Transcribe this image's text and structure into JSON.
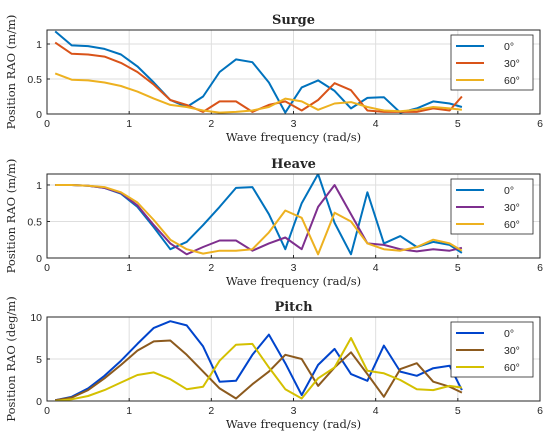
{
  "chart_data": [
    {
      "type": "line",
      "title": "Surge",
      "xlabel": "Wave frequency (rad/s)",
      "ylabel": "Position RAO (m/m)",
      "xlim": [
        0,
        6
      ],
      "ylim": [
        0,
        1.2
      ],
      "xticks": [
        "0",
        "1",
        "2",
        "3",
        "4",
        "5",
        "6"
      ],
      "yticks": [
        "0",
        "0.5",
        "1"
      ],
      "grid": true,
      "legend_position": "top-right",
      "series": [
        {
          "name": "0°",
          "color": "#0072BD",
          "x": [
            0.1,
            0.3,
            0.5,
            0.7,
            0.9,
            1.1,
            1.3,
            1.5,
            1.7,
            1.9,
            2.1,
            2.3,
            2.5,
            2.7,
            2.9,
            3.1,
            3.3,
            3.5,
            3.7,
            3.9,
            4.1,
            4.3,
            4.5,
            4.7,
            4.9,
            5.05
          ],
          "y": [
            1.18,
            0.98,
            0.97,
            0.93,
            0.85,
            0.68,
            0.45,
            0.2,
            0.1,
            0.25,
            0.6,
            0.78,
            0.74,
            0.45,
            0.02,
            0.38,
            0.48,
            0.33,
            0.08,
            0.23,
            0.24,
            0.02,
            0.08,
            0.18,
            0.15,
            0.1
          ]
        },
        {
          "name": "30°",
          "color": "#D95319",
          "x": [
            0.1,
            0.3,
            0.5,
            0.7,
            0.9,
            1.1,
            1.3,
            1.5,
            1.7,
            1.9,
            2.1,
            2.3,
            2.5,
            2.7,
            2.9,
            3.1,
            3.3,
            3.5,
            3.7,
            3.9,
            4.1,
            4.3,
            4.5,
            4.7,
            4.9,
            5.05
          ],
          "y": [
            1.02,
            0.86,
            0.85,
            0.82,
            0.73,
            0.6,
            0.42,
            0.2,
            0.13,
            0.03,
            0.18,
            0.18,
            0.03,
            0.13,
            0.18,
            0.05,
            0.2,
            0.44,
            0.34,
            0.05,
            0.03,
            0.03,
            0.03,
            0.08,
            0.05,
            0.25
          ]
        },
        {
          "name": "60°",
          "color": "#EDB120",
          "x": [
            0.1,
            0.3,
            0.5,
            0.7,
            0.9,
            1.1,
            1.3,
            1.5,
            1.7,
            1.9,
            2.1,
            2.3,
            2.5,
            2.7,
            2.9,
            3.1,
            3.3,
            3.5,
            3.7,
            3.9,
            4.1,
            4.3,
            4.5,
            4.7,
            4.9,
            5.05
          ],
          "y": [
            0.58,
            0.49,
            0.48,
            0.45,
            0.4,
            0.32,
            0.22,
            0.13,
            0.1,
            0.05,
            0.02,
            0.03,
            0.05,
            0.1,
            0.22,
            0.18,
            0.06,
            0.15,
            0.17,
            0.1,
            0.05,
            0.04,
            0.06,
            0.1,
            0.08,
            0.06
          ]
        }
      ]
    },
    {
      "type": "line",
      "title": "Heave",
      "xlabel": "Wave frequency (rad/s)",
      "ylabel": "Position RAO (m/m)",
      "xlim": [
        0,
        6
      ],
      "ylim": [
        0,
        1.15
      ],
      "xticks": [
        "0",
        "1",
        "2",
        "3",
        "4",
        "5",
        "6"
      ],
      "yticks": [
        "0",
        "0.5",
        "1"
      ],
      "grid": true,
      "legend_position": "top-right",
      "series": [
        {
          "name": "0°",
          "color": "#0072BD",
          "x": [
            0.1,
            0.3,
            0.5,
            0.7,
            0.9,
            1.1,
            1.3,
            1.5,
            1.7,
            1.9,
            2.1,
            2.3,
            2.5,
            2.7,
            2.9,
            3.1,
            3.3,
            3.5,
            3.7,
            3.9,
            4.1,
            4.3,
            4.5,
            4.7,
            4.9,
            5.05
          ],
          "y": [
            1.0,
            1.0,
            0.99,
            0.96,
            0.88,
            0.7,
            0.42,
            0.12,
            0.22,
            0.45,
            0.7,
            0.96,
            0.97,
            0.6,
            0.12,
            0.75,
            1.15,
            0.48,
            0.05,
            0.9,
            0.2,
            0.3,
            0.15,
            0.22,
            0.18,
            0.07
          ]
        },
        {
          "name": "30°",
          "color": "#7E2F8E",
          "x": [
            0.1,
            0.3,
            0.5,
            0.7,
            0.9,
            1.1,
            1.3,
            1.5,
            1.7,
            1.9,
            2.1,
            2.3,
            2.5,
            2.7,
            2.9,
            3.1,
            3.3,
            3.5,
            3.7,
            3.9,
            4.1,
            4.3,
            4.5,
            4.7,
            4.9,
            5.05
          ],
          "y": [
            1.0,
            1.0,
            0.99,
            0.96,
            0.89,
            0.72,
            0.45,
            0.2,
            0.05,
            0.15,
            0.24,
            0.24,
            0.1,
            0.2,
            0.28,
            0.12,
            0.7,
            1.0,
            0.6,
            0.2,
            0.18,
            0.12,
            0.09,
            0.12,
            0.1,
            0.14
          ]
        },
        {
          "name": "60°",
          "color": "#EDB120",
          "x": [
            0.1,
            0.3,
            0.5,
            0.7,
            0.9,
            1.1,
            1.3,
            1.5,
            1.7,
            1.9,
            2.1,
            2.3,
            2.5,
            2.7,
            2.9,
            3.1,
            3.3,
            3.5,
            3.7,
            3.9,
            4.1,
            4.3,
            4.5,
            4.7,
            4.9,
            5.05
          ],
          "y": [
            1.0,
            1.0,
            0.99,
            0.97,
            0.9,
            0.76,
            0.52,
            0.25,
            0.12,
            0.06,
            0.1,
            0.1,
            0.12,
            0.35,
            0.65,
            0.55,
            0.05,
            0.62,
            0.5,
            0.2,
            0.12,
            0.1,
            0.15,
            0.25,
            0.2,
            0.1
          ]
        }
      ]
    },
    {
      "type": "line",
      "title": "Pitch",
      "xlabel": "Wave frequency (rad/s)",
      "ylabel": "Position RAO (deg/m)",
      "xlim": [
        0,
        6
      ],
      "ylim": [
        0,
        10
      ],
      "xticks": [
        "0",
        "1",
        "2",
        "3",
        "4",
        "5",
        "6"
      ],
      "yticks": [
        "0",
        "5",
        "10"
      ],
      "grid": true,
      "legend_position": "top-right",
      "series": [
        {
          "name": "0°",
          "color": "#0044CC",
          "x": [
            0.1,
            0.3,
            0.5,
            0.7,
            0.9,
            1.1,
            1.3,
            1.5,
            1.7,
            1.9,
            2.1,
            2.3,
            2.5,
            2.7,
            2.9,
            3.1,
            3.3,
            3.5,
            3.7,
            3.9,
            4.1,
            4.3,
            4.5,
            4.7,
            4.9,
            5.05
          ],
          "y": [
            0.1,
            0.5,
            1.5,
            3.0,
            4.8,
            6.8,
            8.7,
            9.5,
            9.0,
            6.5,
            2.3,
            2.4,
            5.5,
            7.9,
            4.5,
            0.7,
            4.3,
            6.2,
            3.2,
            2.4,
            6.6,
            3.5,
            3.0,
            3.9,
            4.2,
            1.3
          ]
        },
        {
          "name": "30°",
          "color": "#8C5A1E",
          "x": [
            0.1,
            0.3,
            0.5,
            0.7,
            0.9,
            1.1,
            1.3,
            1.5,
            1.7,
            1.9,
            2.1,
            2.3,
            2.5,
            2.7,
            2.9,
            3.1,
            3.3,
            3.5,
            3.7,
            3.9,
            4.1,
            4.3,
            4.5,
            4.7,
            4.9,
            5.05
          ],
          "y": [
            0.1,
            0.4,
            1.3,
            2.7,
            4.3,
            6.0,
            7.1,
            7.2,
            5.5,
            3.5,
            1.5,
            0.3,
            2.0,
            3.5,
            5.5,
            5.0,
            1.8,
            4.0,
            5.8,
            3.2,
            0.5,
            3.8,
            4.5,
            2.3,
            1.7,
            1.0
          ]
        },
        {
          "name": "60°",
          "color": "#D4C000",
          "x": [
            0.1,
            0.3,
            0.5,
            0.7,
            0.9,
            1.1,
            1.3,
            1.5,
            1.7,
            1.9,
            2.1,
            2.3,
            2.5,
            2.7,
            2.9,
            3.1,
            3.3,
            3.5,
            3.7,
            3.9,
            4.1,
            4.3,
            4.5,
            4.7,
            4.9,
            5.05
          ],
          "y": [
            0.0,
            0.2,
            0.6,
            1.3,
            2.2,
            3.1,
            3.4,
            2.6,
            1.4,
            1.7,
            4.8,
            6.7,
            6.8,
            4.0,
            1.4,
            0.3,
            2.7,
            4.0,
            7.5,
            3.6,
            3.3,
            2.5,
            1.4,
            1.3,
            1.8,
            1.6
          ]
        }
      ]
    }
  ]
}
